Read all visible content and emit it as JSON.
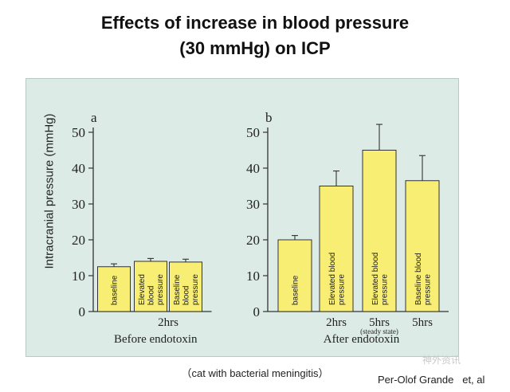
{
  "title": {
    "line1": "Effects of increase in blood pressure",
    "line2": "(30 mmHg) on ICP"
  },
  "ylabel": "Intracranial pressure (mmHg)",
  "caption": "（cat with bacterial meningitis）",
  "credit": "Per-Olof Grande   et, al",
  "watermark": "神外资讯",
  "colors": {
    "bar": "#f8ee73",
    "bar_stroke": "#333333",
    "panel": "#dcebe6"
  },
  "chart_data": [
    {
      "type": "bar",
      "panel_letter": "a",
      "xlabel": "Before endotoxin",
      "ylim": [
        0,
        50
      ],
      "yticks": [
        0,
        10,
        20,
        30,
        40,
        50
      ],
      "grid": false,
      "categories": [
        "baseline",
        "Elevated blood pressure",
        "Baseline blood pressure"
      ],
      "bar_labels": [
        [
          "baseline"
        ],
        [
          "Elevated",
          "blood",
          "pressure"
        ],
        [
          "Baseline",
          "blood",
          "pressure"
        ]
      ],
      "values": [
        12.5,
        14,
        13.8
      ],
      "errors": [
        0.8,
        0.8,
        0.8
      ],
      "group_labels": [
        {
          "text": "2hrs",
          "between": [
            1,
            2
          ]
        }
      ]
    },
    {
      "type": "bar",
      "panel_letter": "b",
      "xlabel": "After endotoxin",
      "ylim": [
        0,
        50
      ],
      "yticks": [
        0,
        10,
        20,
        30,
        40,
        50
      ],
      "grid": false,
      "categories": [
        "baseline",
        "Elevated blood pressure",
        "Elevated blood pressure",
        "Baseline blood pressure"
      ],
      "bar_labels": [
        [
          "baseline"
        ],
        [
          "Elevated blood",
          "pressure"
        ],
        [
          "Elevated blood",
          "pressure"
        ],
        [
          "Baseline blood",
          "pressure"
        ]
      ],
      "values": [
        20,
        35,
        45,
        36.5
      ],
      "errors": [
        1.2,
        4.2,
        7.2,
        7
      ],
      "bar_ticks": [
        "",
        "2hrs",
        "5hrs",
        "5hrs"
      ],
      "bar_subticks": [
        "",
        "",
        "(steady state)",
        ""
      ]
    }
  ]
}
